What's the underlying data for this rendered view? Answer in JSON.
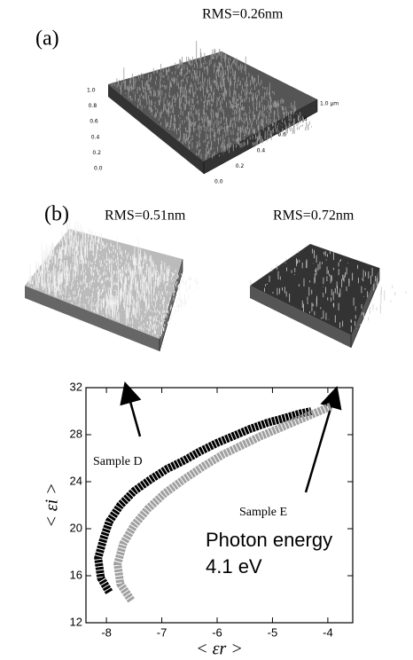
{
  "panel_a": {
    "label": "(a)",
    "rms": "RMS=0.26nm",
    "left_axis": [
      "1.0",
      "0.8",
      "0.6",
      "0.4",
      "0.2",
      "0.0"
    ],
    "right_axis": [
      "1.0 µm",
      "0.8",
      "0.6",
      "0.4",
      "0.2",
      "0.0"
    ]
  },
  "panel_b": {
    "label": "(b)",
    "rms_left": "RMS=0.51nm",
    "rms_right": "RMS=0.72nm"
  },
  "chart_data": {
    "type": "line",
    "x_label": "< εr >",
    "y_label": "< εi >",
    "xlim": [
      -8.37,
      -3.55
    ],
    "ylim": [
      12,
      32
    ],
    "xticks": [
      -8,
      -7,
      -6,
      -5,
      -4
    ],
    "yticks": [
      12,
      16,
      20,
      24,
      28,
      32
    ],
    "annotations": [
      "Sample D",
      "Sample E",
      "Photon energy",
      "4.1 eV"
    ],
    "series": [
      {
        "name": "Sample D",
        "color": "#000000",
        "x": [
          -7.95,
          -8.1,
          -8.15,
          -8.05,
          -7.95,
          -7.75,
          -7.5,
          -7.2,
          -6.9,
          -6.6,
          -6.3,
          -6.0,
          -5.7,
          -5.4,
          -5.1,
          -4.8,
          -4.5,
          -4.3
        ],
        "values": [
          14.6,
          15.8,
          17.5,
          19.2,
          20.6,
          22.0,
          23.2,
          24.2,
          25.1,
          25.8,
          26.6,
          27.3,
          27.9,
          28.5,
          29.0,
          29.4,
          29.8,
          30.0
        ]
      },
      {
        "name": "Sample E",
        "color": "#a0a0a0",
        "x": [
          -7.55,
          -7.75,
          -7.8,
          -7.7,
          -7.5,
          -7.25,
          -6.95,
          -6.6,
          -6.25,
          -5.9,
          -5.55,
          -5.2,
          -4.85,
          -4.5,
          -4.2,
          -3.95
        ],
        "values": [
          13.9,
          15.3,
          17.0,
          18.7,
          20.3,
          21.7,
          23.0,
          24.2,
          25.3,
          26.3,
          27.1,
          27.9,
          28.6,
          29.3,
          29.9,
          30.4
        ]
      }
    ]
  }
}
